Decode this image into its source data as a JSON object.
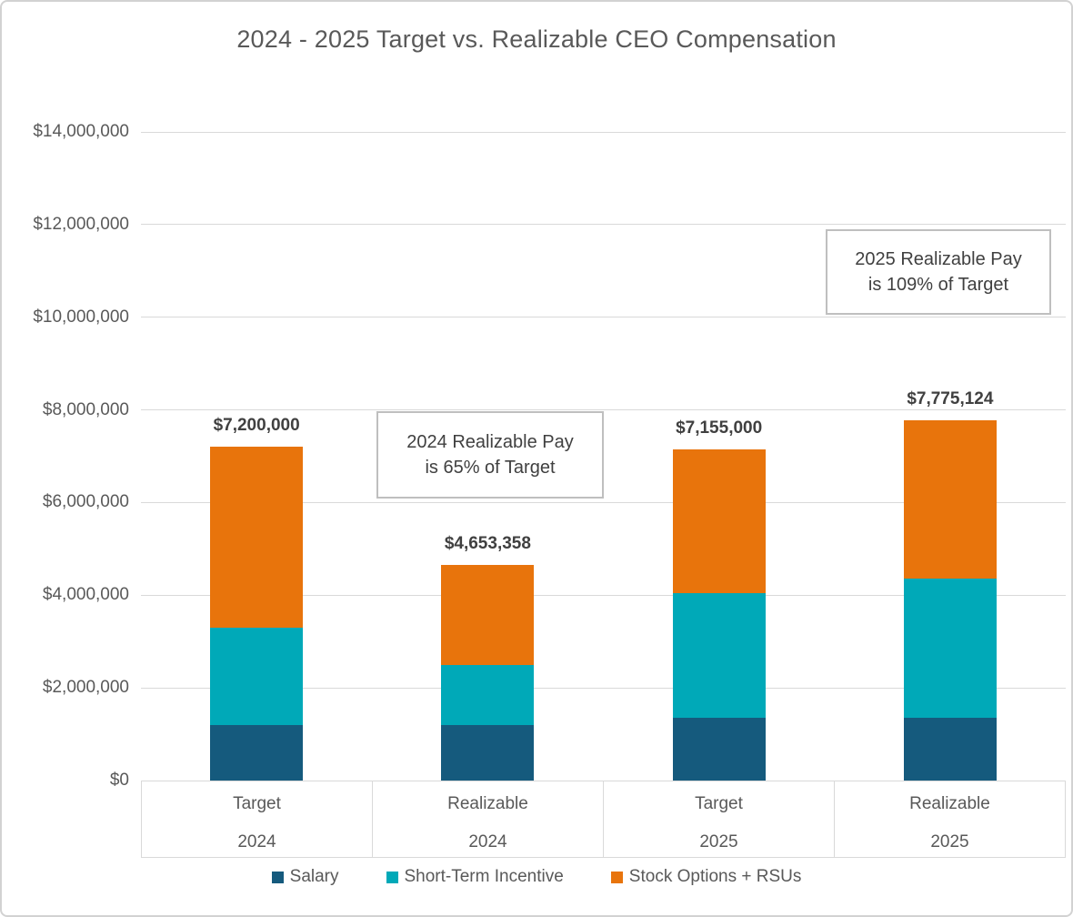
{
  "title": "2024 - 2025 Target vs. Realizable CEO Compensation",
  "colors": {
    "salary": "#155A7D",
    "short_term_incentive": "#00A9B8",
    "stock_options_rsus": "#E8740C",
    "gridline": "#D9D9D9",
    "axis_text": "#595959",
    "data_label_text": "#404040",
    "callout_border": "#BFBFBF"
  },
  "chart_data": {
    "type": "bar",
    "stacked": true,
    "title": "2024 - 2025 Target vs. Realizable CEO Compensation",
    "xlabel": "",
    "ylabel": "",
    "ylim": [
      0,
      14000000
    ],
    "ytick_step": 2000000,
    "grid": true,
    "legend_position": "bottom",
    "yticks": [
      "$0",
      "$2,000,000",
      "$4,000,000",
      "$6,000,000",
      "$8,000,000",
      "$10,000,000",
      "$12,000,000",
      "$14,000,000"
    ],
    "categories": [
      {
        "label": "Target",
        "sublabel": "2024"
      },
      {
        "label": "Realizable",
        "sublabel": "2024"
      },
      {
        "label": "Target",
        "sublabel": "2025"
      },
      {
        "label": "Realizable",
        "sublabel": "2025"
      }
    ],
    "series": [
      {
        "name": "Salary",
        "color": "#155A7D",
        "values": [
          1200000,
          1200000,
          1350000,
          1350000
        ]
      },
      {
        "name": "Short-Term Incentive",
        "color": "#00A9B8",
        "values": [
          2100000,
          1300000,
          2700000,
          3000000
        ]
      },
      {
        "name": "Stock Options + RSUs",
        "color": "#E8740C",
        "values": [
          3900000,
          2153358,
          3105000,
          3425124
        ]
      }
    ],
    "totals": [
      7200000,
      4653358,
      7155000,
      7775124
    ],
    "total_labels": [
      "$7,200,000",
      "$4,653,358",
      "$7,155,000",
      "$7,775,124"
    ]
  },
  "annotations": [
    {
      "line1": "2024 Realizable Pay",
      "line2": "is 65% of Target"
    },
    {
      "line1": "2025 Realizable Pay",
      "line2": "is 109% of Target"
    }
  ]
}
